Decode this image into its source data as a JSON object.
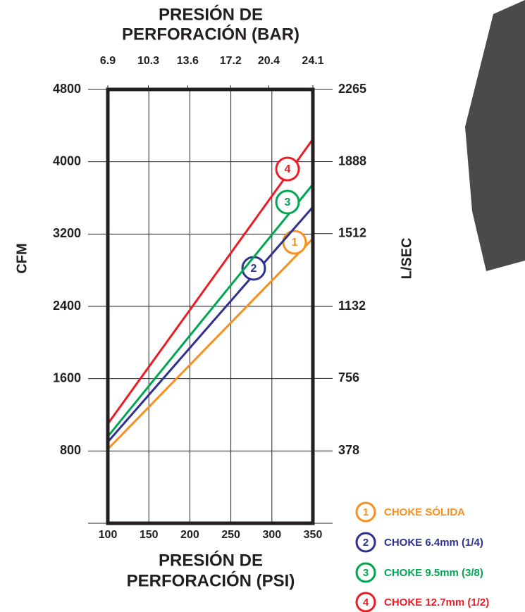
{
  "chart_data": {
    "type": "line",
    "x2_title": [
      "PRESIÓN DE",
      "PERFORACIÓN (BAR)"
    ],
    "x_title": [
      "PRESIÓN DE",
      "PERFORACIÓN (PSI)"
    ],
    "y_title": "CFM",
    "y2_title": "L/SEC",
    "x": [
      100,
      350
    ],
    "xlim": [
      100,
      350
    ],
    "xticks": [
      100,
      150,
      200,
      250,
      300,
      350
    ],
    "x2lim": [
      6.9,
      24.1
    ],
    "x2ticks": [
      6.9,
      10.3,
      13.6,
      17.2,
      20.4,
      24.1
    ],
    "ylim": [
      0,
      4800
    ],
    "yticks": [
      800,
      1600,
      2400,
      3200,
      4000,
      4800
    ],
    "y2lim": [
      0,
      2265
    ],
    "y2ticks": [
      378,
      756,
      1132,
      1512,
      1888,
      2265
    ],
    "grid": true,
    "series": [
      {
        "name": "CHOKE SÓLIDA",
        "label": "1",
        "color": "#f7901e",
        "values": [
          820,
          3150
        ]
      },
      {
        "name": "CHOKE 6.4mm (1/4)",
        "label": "2",
        "color": "#2e3192",
        "values": [
          900,
          3500
        ]
      },
      {
        "name": "CHOKE 9.5mm (3/8)",
        "label": "3",
        "color": "#00a651",
        "values": [
          960,
          3750
        ]
      },
      {
        "name": "CHOKE 12.7mm (1/2)",
        "label": "4",
        "color": "#ed1c24",
        "values": [
          1100,
          4250
        ]
      }
    ]
  }
}
